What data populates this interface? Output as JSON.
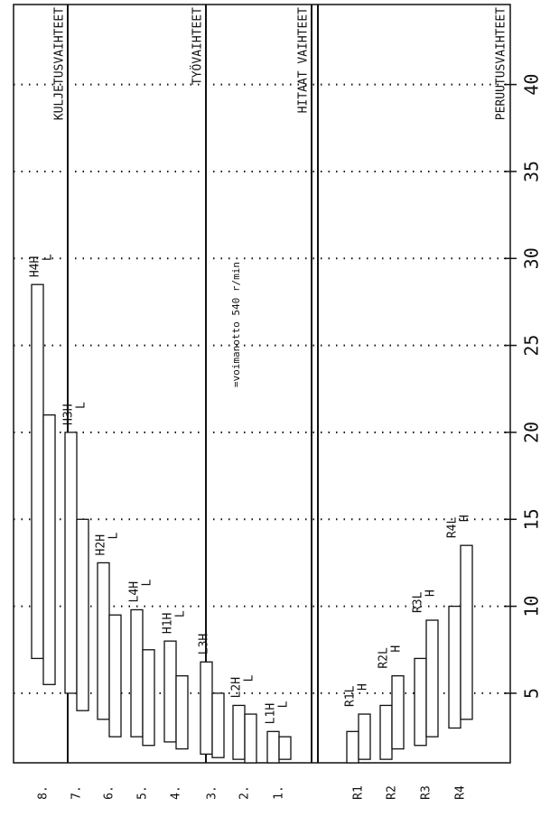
{
  "group_labels": {
    "transport": "KULJETUSVAIHTEET",
    "work": "TYÖVAIHTEET",
    "slow": "HITAAT VAIHTEET",
    "reverse": "PERUUTUSVAIHTEET"
  },
  "chart_data": {
    "type": "range-bar",
    "annotation": "=voimanotto 540 r/min",
    "ylim": [
      1,
      44.6
    ],
    "yticks": [
      5,
      10,
      15,
      20,
      25,
      30,
      35,
      40
    ],
    "grid": true,
    "color": "#ffffff",
    "gears": [
      {
        "name": "8.",
        "tag": "H4H",
        "tag2": "L",
        "ranges": [
          [
            7,
            28.5
          ],
          [
            5.5,
            21
          ]
        ]
      },
      {
        "name": "7.",
        "tag": "H3H",
        "tag2": "L",
        "ranges": [
          [
            5,
            20
          ],
          [
            4,
            15
          ]
        ]
      },
      {
        "name": "6.",
        "tag": "H2H",
        "tag2": "L",
        "ranges": [
          [
            3.5,
            12.5
          ],
          [
            2.5,
            9.5
          ]
        ]
      },
      {
        "name": "5.",
        "tag": "L4H",
        "tag2": "L",
        "ranges": [
          [
            2.5,
            9.8
          ],
          [
            2,
            7.5
          ]
        ]
      },
      {
        "name": "4.",
        "tag": "H1H",
        "tag2": "L",
        "ranges": [
          [
            2.2,
            8
          ],
          [
            1.8,
            6
          ]
        ]
      },
      {
        "name": "3.",
        "tag": "L3H",
        "ranges": [
          [
            1.5,
            6.8
          ],
          [
            1.3,
            5
          ]
        ]
      },
      {
        "name": "2.",
        "tag": "L2H",
        "tag2": "L",
        "ranges": [
          [
            1.2,
            4.3
          ],
          [
            1,
            3.8
          ]
        ]
      },
      {
        "name": "1.",
        "tag": "L1H",
        "tag2": "L",
        "ranges": [
          [
            1,
            2.8
          ],
          [
            1.2,
            2.5
          ]
        ]
      },
      {
        "name": "R1",
        "tag": "R1L",
        "tag2": "H",
        "ranges": [
          [
            1,
            2.8
          ],
          [
            1.2,
            3.8
          ]
        ]
      },
      {
        "name": "R2",
        "tag": "R2L",
        "tag2": "H",
        "ranges": [
          [
            1.2,
            4.3
          ],
          [
            1.8,
            6
          ]
        ]
      },
      {
        "name": "R3",
        "tag": "R3L",
        "tag2": "H",
        "ranges": [
          [
            2,
            7
          ],
          [
            2.5,
            9.2
          ]
        ]
      },
      {
        "name": "R4",
        "tag": "R4L",
        "tag2": "H",
        "ranges": [
          [
            3,
            10
          ],
          [
            3.5,
            13.5
          ]
        ]
      }
    ]
  }
}
